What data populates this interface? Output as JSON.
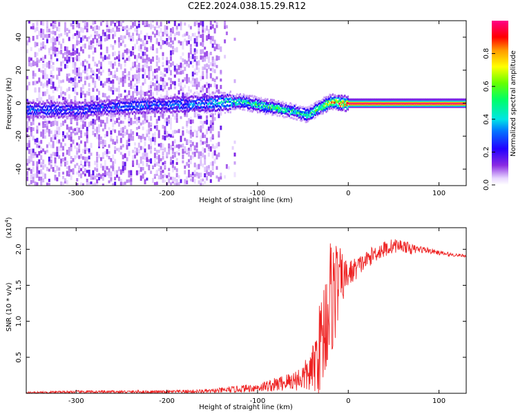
{
  "title": "C2E2.2024.038.15.29.R12",
  "colors": {
    "snr_line": "#ee2222",
    "frame": "#000000"
  },
  "chart_data": [
    {
      "type": "heatmap",
      "title": "C2E2.2024.038.15.29.R12",
      "xlabel": "Height of straight line (km)",
      "ylabel": "Frequency (Hz)",
      "xlim": [
        -355,
        130
      ],
      "ylim": [
        -50,
        50
      ],
      "x_ticks": [
        -300,
        -200,
        -100,
        0,
        100
      ],
      "x_tick_labels": [
        "-300",
        "-200",
        "-100",
        "0",
        "100"
      ],
      "y_ticks": [
        -40,
        -20,
        0,
        20,
        40
      ],
      "y_tick_labels": [
        "-40",
        "-20",
        "0",
        "20",
        "40"
      ],
      "colorbar": {
        "label": "Normalized spectral amplitude",
        "range": [
          0,
          1
        ],
        "ticks": [
          0.0,
          0.2,
          0.4,
          0.6,
          0.8
        ],
        "tick_labels": [
          "0.0",
          "0.2",
          "0.4",
          "0.6",
          "0.8"
        ],
        "colormap": "rainbow (purple-blue-cyan-green-yellow-red-magenta)"
      },
      "ridge": {
        "description": "main spectral line centre frequency vs height",
        "x": [
          -355,
          -300,
          -250,
          -200,
          -150,
          -120,
          -100,
          -80,
          -60,
          -45,
          -30,
          -20,
          -10,
          0,
          130
        ],
        "y": [
          -4,
          -4,
          -2,
          -1,
          0,
          1,
          -1,
          -3,
          -5,
          -7,
          -2,
          1,
          0,
          0,
          0
        ],
        "peak_amplitude": [
          0.3,
          0.3,
          0.3,
          0.3,
          0.4,
          0.5,
          0.55,
          0.55,
          0.5,
          0.5,
          0.6,
          0.8,
          0.9,
          1.0,
          1.0
        ]
      }
    },
    {
      "type": "line",
      "xlabel": "Height of straight line (km)",
      "ylabel": "SNR (10 * v/v)",
      "y_multiplier": "(x10",
      "y_multiplier_exp": "4",
      "y_multiplier_close": ")",
      "xlim": [
        -355,
        130
      ],
      "ylim": [
        0,
        2.3
      ],
      "x_ticks": [
        -300,
        -200,
        -100,
        0,
        100
      ],
      "x_tick_labels": [
        "-300",
        "-200",
        "-100",
        "0",
        "100"
      ],
      "y_ticks": [
        0.5,
        1.0,
        1.5,
        2.0
      ],
      "y_tick_labels": [
        "0.5",
        "1.0",
        "1.5",
        "2.0"
      ],
      "series": [
        {
          "x": [
            -355,
            -300,
            -250,
            -200,
            -150,
            -120,
            -100,
            -80,
            -60,
            -50,
            -40,
            -35,
            -30,
            -25,
            -20,
            -15,
            -10,
            -5,
            0,
            10,
            20,
            30,
            40,
            50,
            60,
            70,
            80,
            90,
            100,
            110,
            120,
            130
          ],
          "y": [
            0.01,
            0.02,
            0.02,
            0.02,
            0.03,
            0.06,
            0.08,
            0.12,
            0.18,
            0.22,
            0.3,
            0.5,
            0.7,
            1.0,
            1.3,
            1.45,
            1.55,
            1.6,
            1.65,
            1.75,
            1.85,
            1.95,
            2.0,
            2.05,
            2.05,
            2.0,
            2.0,
            1.98,
            1.95,
            1.93,
            1.92,
            1.91
          ],
          "spread": [
            0.01,
            0.02,
            0.02,
            0.02,
            0.03,
            0.05,
            0.06,
            0.1,
            0.14,
            0.2,
            0.3,
            0.5,
            0.7,
            0.8,
            0.9,
            0.8,
            0.5,
            0.3,
            0.2,
            0.15,
            0.12,
            0.12,
            0.12,
            0.1,
            0.09,
            0.07,
            0.05,
            0.04,
            0.03,
            0.03,
            0.02,
            0.02
          ]
        }
      ]
    }
  ]
}
